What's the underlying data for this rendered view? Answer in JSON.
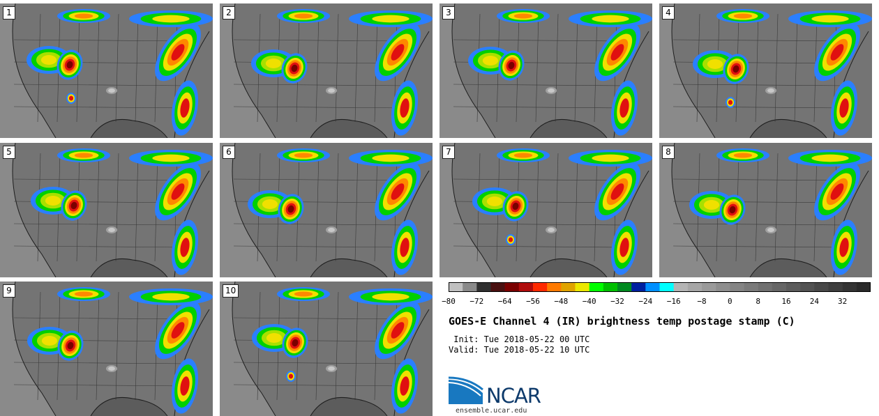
{
  "figure": {
    "title": "GOES-E Channel 4 (IR) brightness temp postage stamp (C)",
    "init_line": " Init: Tue 2018-05-22 00 UTC",
    "valid_line": "Valid: Tue 2018-05-22 10 UTC"
  },
  "panels": [
    "1",
    "2",
    "3",
    "4",
    "5",
    "6",
    "7",
    "8",
    "9",
    "10"
  ],
  "colorbar": {
    "units": "C",
    "colors": [
      "#c0c0c0",
      "#8a8a8a",
      "#303030",
      "#4a1010",
      "#7a0000",
      "#b00c0c",
      "#ff2a00",
      "#ff7a00",
      "#e0a400",
      "#ece800",
      "#00ff00",
      "#00c000",
      "#008a20",
      "#0020a0",
      "#0090ff",
      "#00ffff",
      "#b4b4b4",
      "#a6a6a6",
      "#9a9a9a",
      "#8e8e8e",
      "#848484",
      "#7a7a7a",
      "#707070",
      "#666666",
      "#5c5c5c",
      "#525252",
      "#484848",
      "#3e3e3e",
      "#343434",
      "#2a2a2a"
    ],
    "tick_labels": [
      "−80",
      "−72",
      "−64",
      "−56",
      "−48",
      "−40",
      "−32",
      "−24",
      "−16",
      "−8",
      "0",
      "8",
      "16",
      "24",
      "32"
    ]
  },
  "branding": {
    "logo_text": "NCAR",
    "site": "ensemble.ucar.edu"
  }
}
